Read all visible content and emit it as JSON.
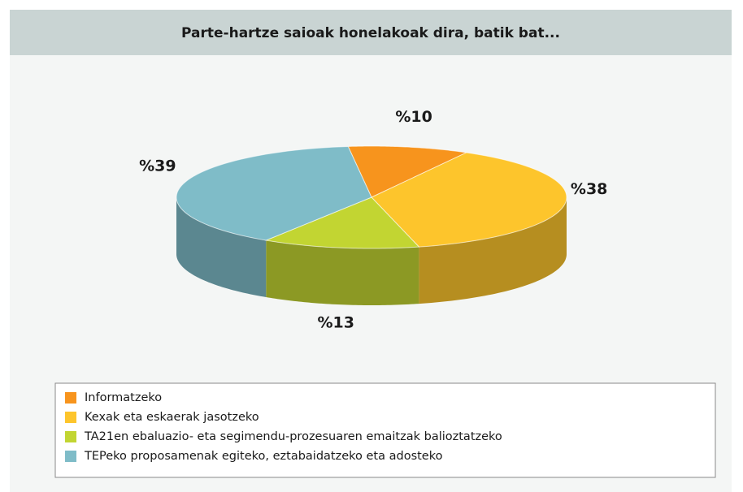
{
  "chart_data": {
    "type": "pie",
    "title": "Parte-hartze saioak honelakoak dira, batik bat...",
    "categories": [
      "Informatzeko",
      "Kexak eta eskaerak jasotzeko",
      "TA21en ebaluazio- eta segimendu-prozesuaren emaitzak balioztatzeko",
      "TEPeko proposamenak egiteko, eztabaidatzeko eta adosteko"
    ],
    "values": [
      10,
      38,
      13,
      39
    ],
    "value_labels": [
      "%10",
      "%38",
      "%13",
      "%39"
    ],
    "colors": [
      "#f7941d",
      "#fdc52c",
      "#c2d532",
      "#7fbcc8"
    ],
    "legend": "bottom"
  }
}
